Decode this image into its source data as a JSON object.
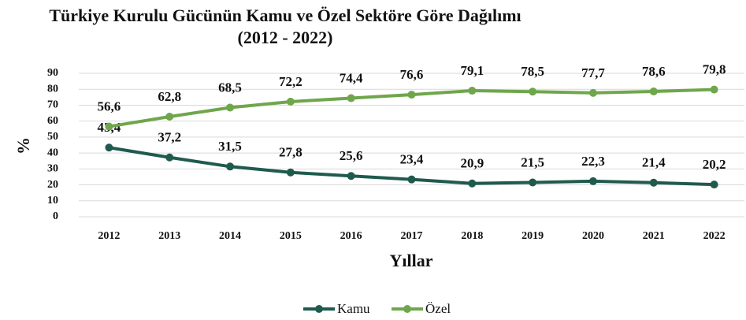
{
  "chart_data": {
    "type": "line",
    "title": "Türkiye Kurulu Gücünün Kamu ve Özel Sektöre Göre Dağılımı",
    "subtitle": "(2012 - 2022)",
    "x_label": "Yıllar",
    "y_label": "%",
    "categories": [
      "2012",
      "2013",
      "2014",
      "2015",
      "2016",
      "2017",
      "2018",
      "2019",
      "2020",
      "2021",
      "2022"
    ],
    "series": [
      {
        "name": "Kamu",
        "color": "#1f5a4e",
        "values": [
          43.4,
          37.2,
          31.5,
          27.8,
          25.6,
          23.4,
          20.9,
          21.5,
          22.3,
          21.4,
          20.2
        ],
        "value_labels": [
          "43,4",
          "37,2",
          "31,5",
          "27,8",
          "25,6",
          "23,4",
          "20,9",
          "21,5",
          "22,3",
          "21,4",
          "20,2"
        ]
      },
      {
        "name": "Özel",
        "color": "#6fa64c",
        "values": [
          56.6,
          62.8,
          68.5,
          72.2,
          74.4,
          76.6,
          79.1,
          78.5,
          77.7,
          78.6,
          79.8
        ],
        "value_labels": [
          "56,6",
          "62,8",
          "68,5",
          "72,2",
          "74,4",
          "76,6",
          "79,1",
          "78,5",
          "77,7",
          "78,6",
          "79,8"
        ]
      }
    ],
    "ylim": [
      0,
      90
    ],
    "yticks": [
      0,
      10,
      20,
      30,
      40,
      50,
      60,
      70,
      80,
      90
    ],
    "grid": true,
    "legend": "bottom"
  }
}
